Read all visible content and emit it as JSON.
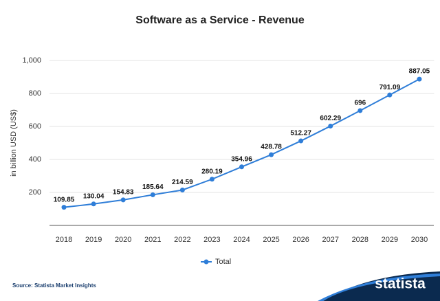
{
  "chart_data": {
    "type": "line",
    "title": "Software as a Service - Revenue",
    "y_label": "in billion USD (US$)",
    "categories": [
      "2018",
      "2019",
      "2020",
      "2021",
      "2022",
      "2023",
      "2024",
      "2025",
      "2026",
      "2027",
      "2028",
      "2029",
      "2030"
    ],
    "series": [
      {
        "name": "Total",
        "color": "#2f7ed8",
        "values": [
          109.85,
          130.04,
          154.83,
          185.64,
          214.59,
          280.19,
          354.96,
          428.78,
          512.27,
          602.29,
          696,
          791.09,
          887.05
        ]
      }
    ],
    "ylim": [
      0,
      1000
    ],
    "yticks": [
      200,
      400,
      600,
      800,
      {
        "value": 1000,
        "label": "1,000"
      }
    ],
    "grid": true,
    "legend": "bottom",
    "source": "Source: Statista Market Insights",
    "logo": "statista"
  }
}
